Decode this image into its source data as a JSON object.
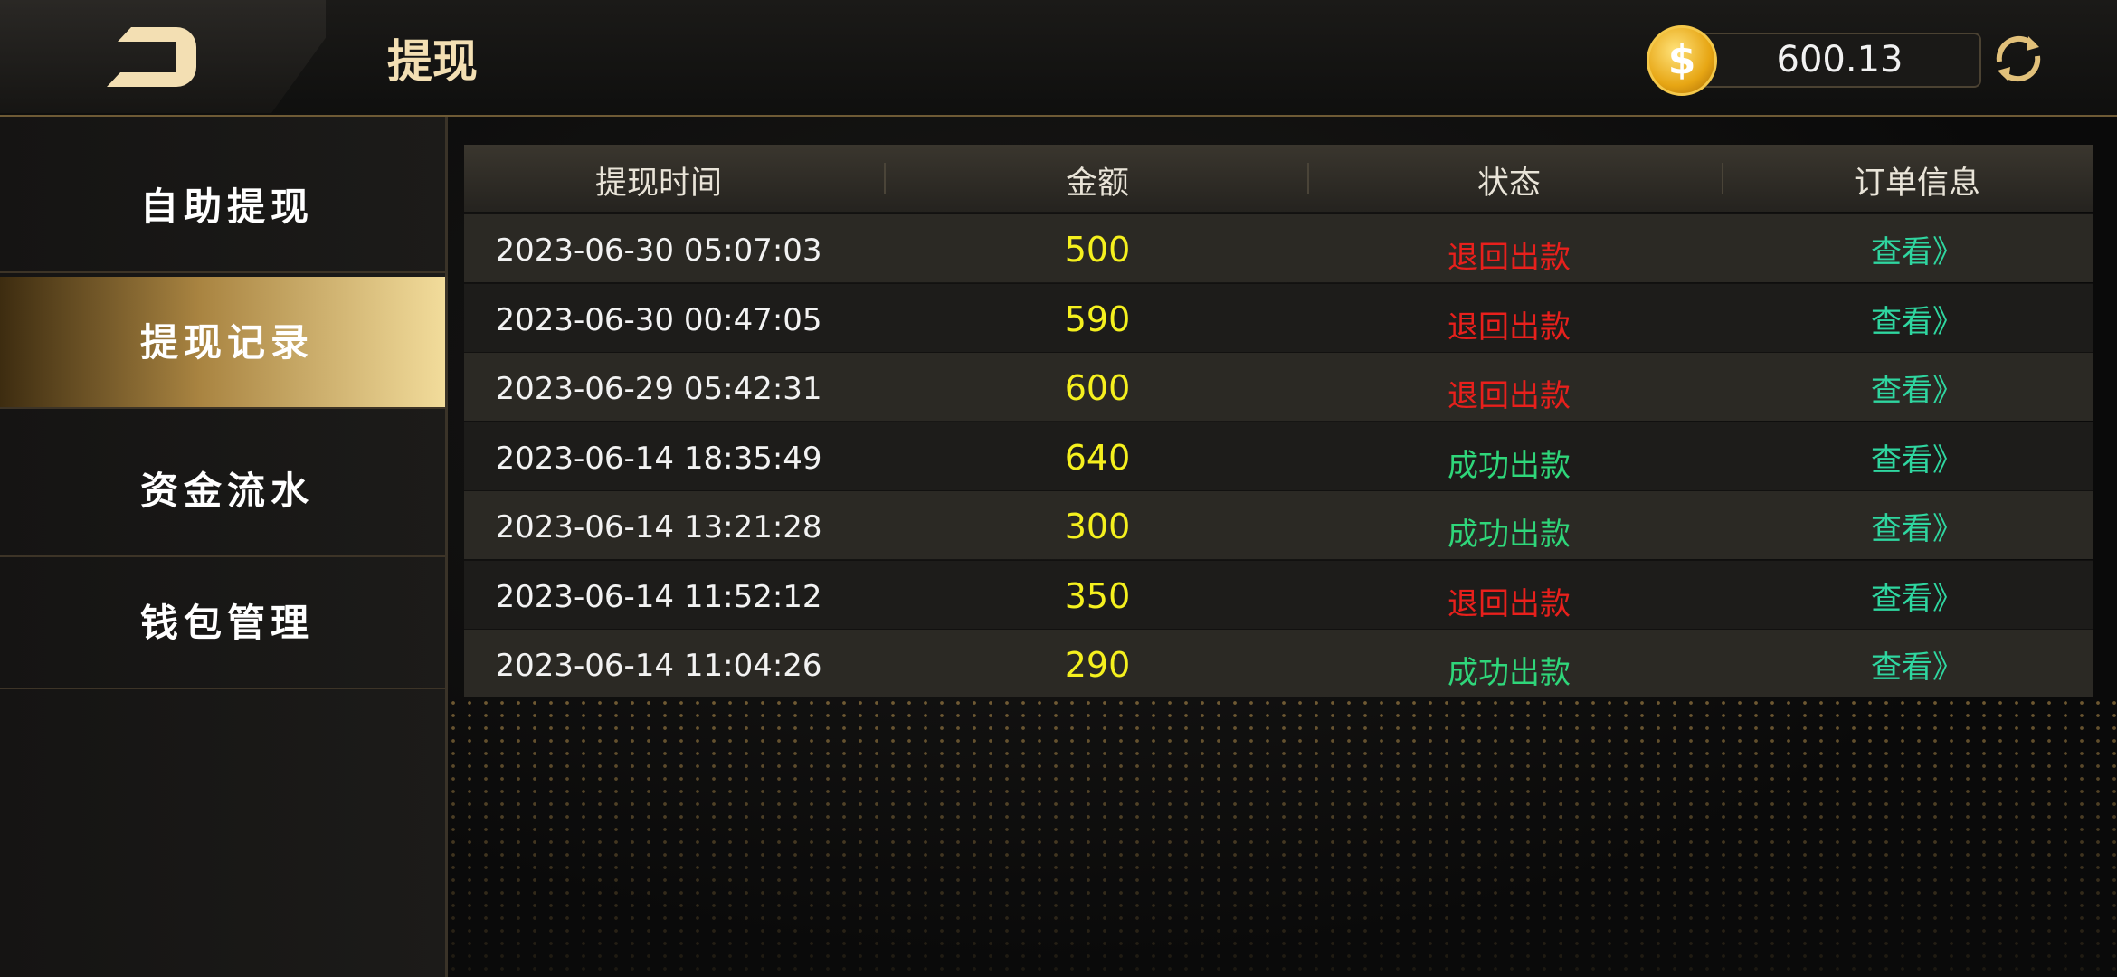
{
  "header": {
    "title": "提现",
    "balance": 600.13
  },
  "sidebar": {
    "items": [
      "自助提现",
      "提现记录",
      "资金流水",
      "钱包管理"
    ],
    "active": 1
  },
  "table": {
    "headers": [
      "提现时间",
      "金额",
      "状态",
      "订单信息"
    ],
    "rows": [
      {
        "time": "2023-06-30 05:07:03",
        "amount": 500,
        "status": "退回出款",
        "status_color": "#e8201c",
        "link": "查看》"
      },
      {
        "time": "2023-06-30 00:47:05",
        "amount": 590,
        "status": "退回出款",
        "status_color": "#e8201c",
        "link": "查看》"
      },
      {
        "time": "2023-06-29 05:42:31",
        "amount": 600,
        "status": "退回出款",
        "status_color": "#e8201c",
        "link": "查看》"
      },
      {
        "time": "2023-06-14 18:35:49",
        "amount": 640,
        "status": "成功出款",
        "status_color": "#2fd67a",
        "link": "查看》"
      },
      {
        "time": "2023-06-14 13:21:28",
        "amount": 300,
        "status": "成功出款",
        "status_color": "#2fd67a",
        "link": "查看》"
      },
      {
        "time": "2023-06-14 11:52:12",
        "amount": 350,
        "status": "退回出款",
        "status_color": "#e8201c",
        "link": "查看》"
      },
      {
        "time": "2023-06-14 11:04:26",
        "amount": 290,
        "status": "成功出款",
        "status_color": "#2fd67a",
        "link": "查看》"
      }
    ]
  }
}
